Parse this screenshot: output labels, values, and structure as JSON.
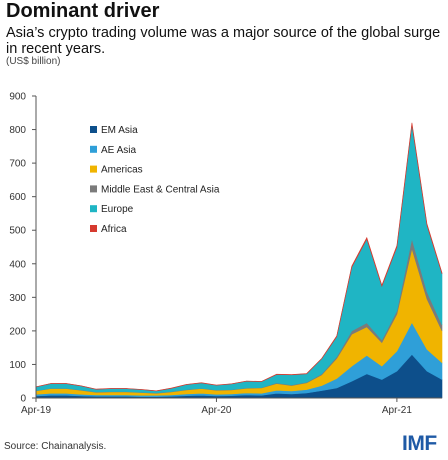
{
  "title": "Dominant driver",
  "subtitle": "Asia’s crypto trading volume was a major source of the global surge in recent years.",
  "unit": "(US$ billion)",
  "source": "Source: Chainanalysis.",
  "logo": "IMF",
  "chart_data": {
    "type": "area",
    "stacked": true,
    "x_labels": [
      "Apr-19",
      "Apr-20",
      "Apr-21"
    ],
    "ylim": [
      0,
      900
    ],
    "yticks": [
      0,
      100,
      200,
      300,
      400,
      500,
      600,
      700,
      800,
      900
    ],
    "grid": false,
    "legend_position": "left",
    "x": [
      "2019-04",
      "2019-05",
      "2019-06",
      "2019-07",
      "2019-08",
      "2019-09",
      "2019-10",
      "2019-11",
      "2019-12",
      "2020-01",
      "2020-02",
      "2020-03",
      "2020-04",
      "2020-05",
      "2020-06",
      "2020-07",
      "2020-08",
      "2020-09",
      "2020-10",
      "2020-11",
      "2020-12",
      "2021-01",
      "2021-02",
      "2021-03",
      "2021-04",
      "2021-05",
      "2021-06",
      "2021-07"
    ],
    "series": [
      {
        "name": "EM Asia",
        "color": "#0d4f8b",
        "values": [
          6,
          8,
          8,
          6,
          5,
          5,
          5,
          4,
          4,
          5,
          7,
          8,
          6,
          7,
          9,
          8,
          14,
          12,
          15,
          22,
          30,
          50,
          72,
          55,
          80,
          130,
          80,
          55
        ]
      },
      {
        "name": "AE Asia",
        "color": "#2f9fd8",
        "values": [
          5,
          6,
          6,
          5,
          4,
          4,
          4,
          4,
          4,
          4,
          5,
          6,
          5,
          5,
          6,
          6,
          9,
          9,
          10,
          15,
          28,
          45,
          55,
          40,
          60,
          95,
          65,
          50
        ]
      },
      {
        "name": "Americas",
        "color": "#f0b400",
        "values": [
          10,
          14,
          14,
          12,
          8,
          9,
          9,
          8,
          6,
          9,
          12,
          14,
          12,
          12,
          14,
          16,
          20,
          16,
          20,
          32,
          60,
          95,
          85,
          70,
          110,
          220,
          150,
          95
        ]
      },
      {
        "name": "Middle East & Central Asia",
        "color": "#7b7b7b",
        "values": [
          1,
          1,
          1,
          1,
          1,
          1,
          1,
          1,
          1,
          1,
          1,
          1,
          1,
          1,
          1,
          1,
          2,
          2,
          2,
          3,
          5,
          10,
          12,
          8,
          10,
          30,
          22,
          18
        ]
      },
      {
        "name": "Europe",
        "color": "#1fb5c4",
        "values": [
          11,
          14,
          14,
          12,
          8,
          9,
          9,
          8,
          6,
          10,
          15,
          16,
          14,
          17,
          20,
          18,
          25,
          30,
          25,
          45,
          60,
          190,
          250,
          160,
          190,
          340,
          198,
          152
        ]
      },
      {
        "name": "Africa",
        "color": "#d63a2f",
        "values": [
          0.5,
          0.5,
          0.5,
          0.5,
          0.5,
          0.5,
          0.5,
          0.5,
          0.5,
          0.5,
          0.5,
          0.5,
          0.5,
          0.5,
          0.5,
          0.5,
          1,
          1,
          1,
          1,
          2,
          3,
          4,
          3,
          4,
          5,
          4,
          3
        ]
      }
    ]
  }
}
